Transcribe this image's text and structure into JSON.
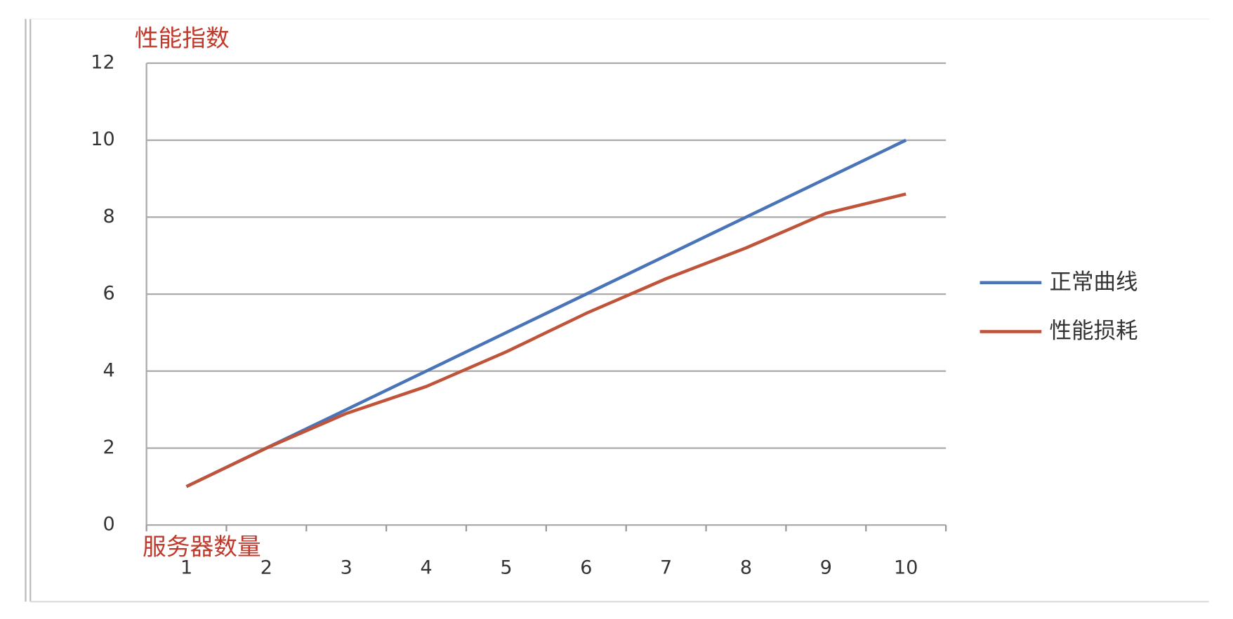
{
  "chart_data": {
    "type": "line",
    "y_label": "性能指数",
    "x_label": "服务器数量",
    "categories": [
      "1",
      "2",
      "3",
      "4",
      "5",
      "6",
      "7",
      "8",
      "9",
      "10"
    ],
    "series": [
      {
        "name": "正常曲线",
        "color": "#4a74b8",
        "values": [
          1,
          2,
          3,
          4,
          5,
          6,
          7,
          8,
          9,
          10
        ]
      },
      {
        "name": "性能损耗",
        "color": "#c0543a",
        "values": [
          1,
          2,
          2.9,
          3.6,
          4.5,
          5.5,
          6.4,
          7.2,
          8.1,
          8.6
        ]
      }
    ],
    "ylim": [
      0,
      12
    ],
    "yticks": [
      0,
      2,
      4,
      6,
      8,
      10,
      12
    ],
    "grid": true,
    "legend": "right"
  }
}
